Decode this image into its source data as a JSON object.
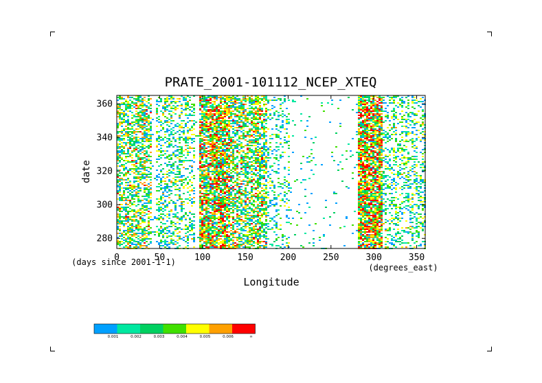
{
  "chart_data": {
    "type": "heatmap",
    "title": "PRATE_2001-101112_NCEP_XTEQ",
    "xlabel": "Longitude",
    "ylabel": "date",
    "x_unit_label": "(degrees_east)",
    "y_unit_label": "(days since 2001-1-1)",
    "xlim": [
      0,
      360
    ],
    "ylim": [
      274,
      365
    ],
    "x_ticks": [
      0,
      50,
      100,
      150,
      200,
      250,
      300,
      350
    ],
    "y_ticks": [
      280,
      300,
      320,
      340,
      360
    ],
    "grid": false,
    "legend": {
      "placement": "bottom-left",
      "colors": [
        "#00a0ff",
        "#00e8a0",
        "#00d060",
        "#40e000",
        "#ffff00",
        "#ffa000",
        "#ff0000"
      ],
      "bounds": [
        "0.001",
        "0.002",
        "0.003",
        "0.004",
        "0.005",
        "0.006",
        "∞"
      ]
    },
    "longitude_bands": [
      {
        "from": 0,
        "to": 40,
        "intensity": 0.55
      },
      {
        "from": 45,
        "to": 90,
        "intensity": 0.35
      },
      {
        "from": 95,
        "to": 130,
        "intensity": 0.8
      },
      {
        "from": 130,
        "to": 175,
        "intensity": 0.6
      },
      {
        "from": 175,
        "to": 200,
        "intensity": 0.2
      },
      {
        "from": 280,
        "to": 310,
        "intensity": 0.85
      },
      {
        "from": 310,
        "to": 360,
        "intensity": 0.3
      }
    ]
  }
}
